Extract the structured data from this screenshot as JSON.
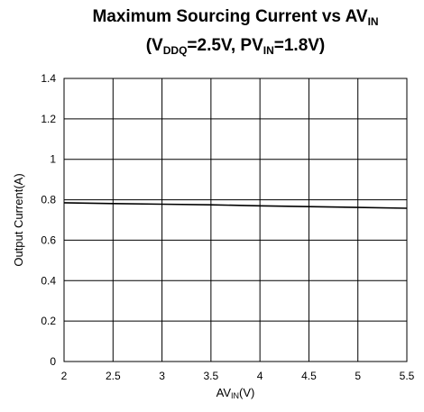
{
  "chart_data": {
    "type": "line",
    "title": {
      "line1_main": "Maximum Sourcing Current vs AV",
      "line1_sub": "IN",
      "line2_open": "(V",
      "line2_sub1": "DDQ",
      "line2_mid": "=2.5V, PV",
      "line2_sub2": "IN",
      "line2_end": "=1.8V)"
    },
    "xlabel": {
      "main": "AV",
      "sub": "IN",
      "unit": "(V)"
    },
    "ylabel": "Output Current(A)",
    "xlim": [
      2,
      5.5
    ],
    "ylim": [
      0,
      1.4
    ],
    "x_ticks": [
      "2",
      "2.5",
      "3",
      "3.5",
      "4",
      "4.5",
      "5",
      "5.5"
    ],
    "y_ticks": [
      "0",
      "0.2",
      "0.4",
      "0.6",
      "0.8",
      "1",
      "1.2",
      "1.4"
    ],
    "grid": true,
    "series": [
      {
        "color": "#000000",
        "x": [
          2,
          2.5,
          3,
          3.5,
          4,
          4.5,
          5,
          5.5
        ],
        "y": [
          0.785,
          0.781,
          0.778,
          0.775,
          0.77,
          0.766,
          0.762,
          0.758
        ]
      }
    ]
  }
}
